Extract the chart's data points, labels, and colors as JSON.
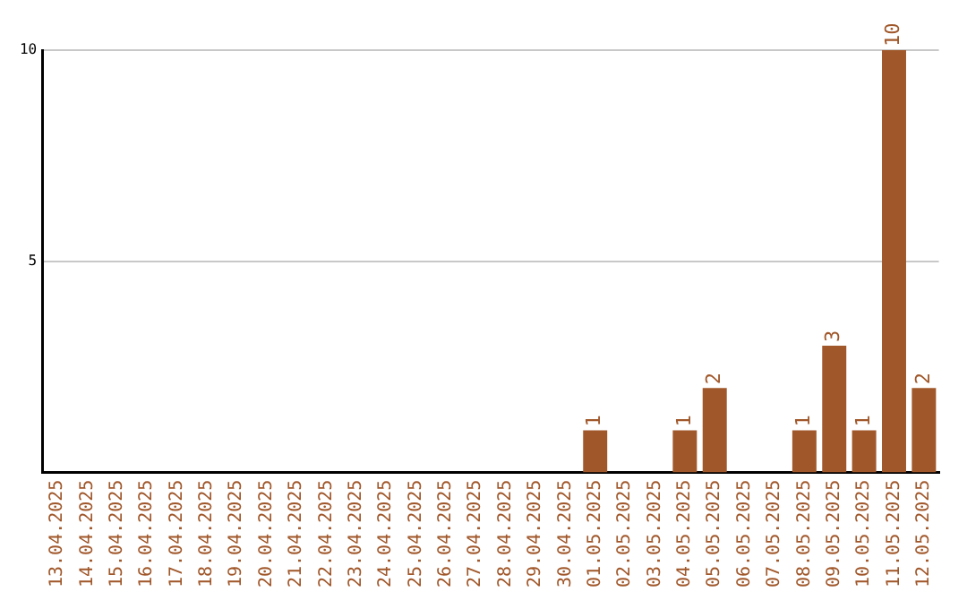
{
  "chart_data": {
    "type": "bar",
    "categories": [
      "13.04.2025",
      "14.04.2025",
      "15.04.2025",
      "16.04.2025",
      "17.04.2025",
      "18.04.2025",
      "19.04.2025",
      "20.04.2025",
      "21.04.2025",
      "22.04.2025",
      "23.04.2025",
      "24.04.2025",
      "25.04.2025",
      "26.04.2025",
      "27.04.2025",
      "28.04.2025",
      "29.04.2025",
      "30.04.2025",
      "01.05.2025",
      "02.05.2025",
      "03.05.2025",
      "04.05.2025",
      "05.05.2025",
      "06.05.2025",
      "07.05.2025",
      "08.05.2025",
      "09.05.2025",
      "10.05.2025",
      "11.05.2025",
      "12.05.2025"
    ],
    "values": [
      0,
      0,
      0,
      0,
      0,
      0,
      0,
      0,
      0,
      0,
      0,
      0,
      0,
      0,
      0,
      0,
      0,
      0,
      1,
      0,
      0,
      1,
      2,
      0,
      0,
      1,
      3,
      1,
      10,
      2
    ],
    "value_labels": [
      null,
      null,
      null,
      null,
      null,
      null,
      null,
      null,
      null,
      null,
      null,
      null,
      null,
      null,
      null,
      null,
      null,
      null,
      "1",
      null,
      null,
      "1",
      "2",
      null,
      null,
      "1",
      "3",
      "1",
      "10",
      "2"
    ],
    "color": "#a0572a",
    "ylim": [
      0,
      10
    ],
    "yticks": [
      5,
      10
    ],
    "grid": "y",
    "legend": false
  }
}
